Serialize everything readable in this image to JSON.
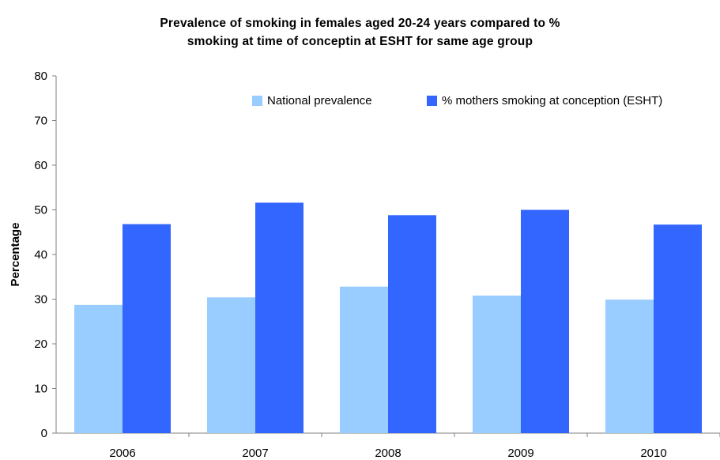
{
  "chart_data": {
    "type": "bar",
    "title_line1": "Prevalence of smoking in females aged 20-24 years compared to %",
    "title_line2": "smoking at time of conceptin at ESHT for same age group",
    "xlabel": "",
    "ylabel": "Percentage",
    "categories": [
      "2006",
      "2007",
      "2008",
      "2009",
      "2010"
    ],
    "ylim": [
      0,
      80
    ],
    "yticks": [
      0,
      10,
      20,
      30,
      40,
      50,
      60,
      70,
      80
    ],
    "grid": false,
    "legend_position": "top-right",
    "series": [
      {
        "name": "National prevalence",
        "color": "#99ccff",
        "values": [
          28.7,
          30.4,
          32.8,
          30.8,
          29.9
        ]
      },
      {
        "name": "% mothers smoking at conception (ESHT)",
        "color": "#3366ff",
        "values": [
          46.8,
          51.6,
          48.8,
          50.0,
          46.7
        ]
      }
    ]
  }
}
